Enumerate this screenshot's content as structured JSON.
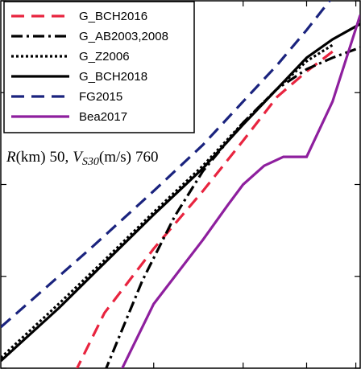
{
  "chart_data": {
    "type": "line",
    "title": "",
    "xlabel": "",
    "ylabel": "",
    "x_scale": "log",
    "y_scale": "log",
    "xlim": [
      1,
      5.1
    ],
    "ylim": [
      0.01,
      100
    ],
    "grid": false,
    "legend_position": "top-left",
    "annotation": {
      "r_symbol": "R",
      "r_unit": "(km)",
      "r_value": "50,",
      "v_symbol": "V",
      "v_sub": "S30",
      "v_unit": "(m/s)",
      "v_value": "760"
    },
    "series": [
      {
        "name": "G_BCH2016",
        "color": "#e8243f",
        "dash": "long-dash",
        "x": [
          1.4,
          1.6,
          2.0,
          2.5,
          3.0,
          3.5,
          4.0,
          4.5
        ],
        "y": [
          0.009,
          0.04,
          0.2,
          0.85,
          3.0,
          9.0,
          17.0,
          28.0
        ]
      },
      {
        "name": "G_AB2003,2008",
        "color": "#000000",
        "dash": "dash-dot",
        "x": [
          1.6,
          1.9,
          2.2,
          2.5,
          3.0,
          3.5,
          4.0,
          4.5,
          5.1
        ],
        "y": [
          0.009,
          0.09,
          0.45,
          1.4,
          4.7,
          11.0,
          18.0,
          24.0,
          31.0
        ]
      },
      {
        "name": "G_Z2006",
        "color": "#000000",
        "dash": "dotted",
        "x": [
          1.0,
          1.3,
          1.6,
          2.0,
          2.5,
          3.0,
          3.5,
          4.0,
          4.5
        ],
        "y": [
          0.013,
          0.05,
          0.15,
          0.5,
          1.6,
          4.7,
          11.0,
          22.0,
          33.0
        ]
      },
      {
        "name": "G_BCH2018",
        "color": "#000000",
        "dash": "solid",
        "x": [
          1.0,
          1.3,
          1.6,
          2.0,
          2.5,
          3.0,
          3.5,
          4.0,
          4.5,
          5.1
        ],
        "y": [
          0.012,
          0.045,
          0.14,
          0.47,
          1.5,
          4.5,
          11.0,
          24.0,
          38.0,
          56.0
        ]
      },
      {
        "name": "FG2015",
        "color": "#1a237e",
        "dash": "long-dash",
        "x": [
          1.0,
          1.5,
          2.0,
          2.5,
          3.0,
          3.5,
          4.0,
          4.5,
          5.1
        ],
        "y": [
          0.028,
          0.2,
          0.85,
          2.7,
          8.0,
          20.0,
          48.0,
          110.0,
          250.0
        ]
      },
      {
        "name": "Bea2017",
        "color": "#8e1f9e",
        "dash": "solid",
        "x": [
          1.7,
          2.0,
          2.5,
          2.8,
          3.0,
          3.3,
          3.6,
          4.0,
          4.5,
          5.1
        ],
        "y": [
          0.008,
          0.05,
          0.25,
          0.6,
          1.0,
          1.6,
          2.0,
          2.0,
          8.0,
          70.0
        ]
      }
    ]
  }
}
